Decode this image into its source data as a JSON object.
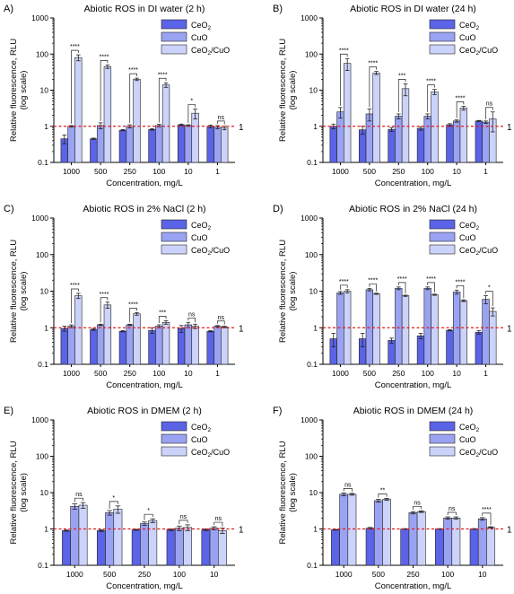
{
  "colors": {
    "CeO2": "#5b63e6",
    "CuO": "#9aa3f2",
    "CeO2/CuO": "#ccd3fa",
    "reference": "#e01b1b"
  },
  "chart_data": [
    {
      "panel": "A)",
      "type": "bar",
      "title": "Abiotic ROS in DI water (2 h)",
      "xlabel": "Concentration, mg/L",
      "ylabel": "Relative fluorescence, RLU",
      "ylabel2": "(log scale)",
      "yscale": "log",
      "ylim": [
        0.1,
        1000
      ],
      "yticks": [
        "0.1",
        "1",
        "10",
        "100",
        "1000"
      ],
      "reference_line": 1,
      "reference_label": "1",
      "legend": "top-right",
      "categories": [
        "1000",
        "500",
        "250",
        "100",
        "10",
        "1"
      ],
      "series": [
        {
          "name": "CeO",
          "sub": "2",
          "color": "#5b63e6",
          "values": [
            0.45,
            0.45,
            0.78,
            0.82,
            1.1,
            1.0
          ],
          "errors": [
            0.12,
            0.02,
            0.03,
            0.04,
            0.05,
            0.08
          ]
        },
        {
          "name": "CuO",
          "sub": "",
          "color": "#9aa3f2",
          "values": [
            1.0,
            1.05,
            1.0,
            1.05,
            1.05,
            0.95
          ],
          "errors": [
            0.05,
            0.2,
            0.1,
            0.08,
            0.05,
            0.1
          ]
        },
        {
          "name": "CeO",
          "sub": "2",
          "tail": "/CuO",
          "color": "#ccd3fa",
          "values": [
            80,
            45,
            20,
            14,
            2.3,
            0.9
          ],
          "errors": [
            15,
            5,
            1.5,
            2,
            0.7,
            0.1
          ]
        }
      ],
      "significance": [
        "****",
        "****",
        "****",
        "****",
        "*",
        "ns"
      ]
    },
    {
      "panel": "B)",
      "type": "bar",
      "title": "Abiotic ROS in DI water (24 h)",
      "xlabel": "Concentration, mg/L",
      "ylabel": "Relative fluorescence, RLU",
      "ylabel2": "(log scale)",
      "yscale": "log",
      "ylim": [
        0.1,
        1000
      ],
      "yticks": [
        "0.1",
        "1",
        "10",
        "100",
        "1000"
      ],
      "reference_line": 1,
      "reference_label": "1",
      "legend": "top-right",
      "categories": [
        "1000",
        "500",
        "250",
        "100",
        "10",
        "1"
      ],
      "series": [
        {
          "name": "CeO",
          "sub": "2",
          "color": "#5b63e6",
          "values": [
            1.0,
            0.8,
            0.82,
            0.88,
            1.1,
            1.4
          ],
          "errors": [
            0.15,
            0.2,
            0.1,
            0.1,
            0.08,
            0.05
          ]
        },
        {
          "name": "CuO",
          "sub": "",
          "color": "#9aa3f2",
          "values": [
            2.5,
            2.2,
            1.9,
            1.9,
            1.4,
            1.3
          ],
          "errors": [
            0.8,
            0.8,
            0.3,
            0.3,
            0.1,
            0.1
          ]
        },
        {
          "name": "CeO",
          "sub": "2",
          "tail": "/CuO",
          "color": "#ccd3fa",
          "values": [
            55,
            30,
            11,
            9,
            3.2,
            1.6
          ],
          "errors": [
            20,
            3,
            4,
            1.5,
            0.4,
            0.9
          ]
        }
      ],
      "significance": [
        "****",
        "****",
        "***",
        "****",
        "****",
        "ns"
      ]
    },
    {
      "panel": "C)",
      "type": "bar",
      "title": "Abiotic ROS in 2% NaCl (2 h)",
      "xlabel": "Concentration, mg/L",
      "ylabel": "Relative fluorescence, RLU",
      "ylabel2": "(log scale)",
      "yscale": "log",
      "ylim": [
        0.1,
        1000
      ],
      "yticks": [
        "0.1",
        "1",
        "10",
        "100",
        "1000"
      ],
      "reference_line": 1,
      "reference_label": "1",
      "legend": "top-right",
      "categories": [
        "1000",
        "500",
        "250",
        "100",
        "10",
        "1"
      ],
      "series": [
        {
          "name": "CeO",
          "sub": "2",
          "color": "#5b63e6",
          "values": [
            0.95,
            0.9,
            0.8,
            0.85,
            0.95,
            0.8
          ],
          "errors": [
            0.15,
            0.05,
            0.03,
            0.15,
            0.2,
            0.03
          ]
        },
        {
          "name": "CuO",
          "sub": "",
          "color": "#9aa3f2",
          "values": [
            1.1,
            1.2,
            1.2,
            1.1,
            1.2,
            1.1
          ],
          "errors": [
            0.1,
            0.05,
            0.05,
            0.1,
            0.2,
            0.05
          ]
        },
        {
          "name": "CeO",
          "sub": "2",
          "tail": "/CuO",
          "color": "#ccd3fa",
          "values": [
            7.5,
            4.2,
            2.4,
            1.4,
            1.1,
            1.05
          ],
          "errors": [
            1.2,
            0.8,
            0.2,
            0.15,
            0.15,
            0.05
          ]
        }
      ],
      "significance": [
        "****",
        "****",
        "****",
        "***",
        "ns",
        "ns"
      ]
    },
    {
      "panel": "D)",
      "type": "bar",
      "title": "Abiotic ROS in 2% NaCl (24 h)",
      "xlabel": "Concentration, mg/L",
      "ylabel": "Relative fluorescence, RLU",
      "ylabel2": "(log scale)",
      "yscale": "log",
      "ylim": [
        0.1,
        1000
      ],
      "yticks": [
        "0.1",
        "1",
        "10",
        "100",
        "1000"
      ],
      "reference_line": 1,
      "reference_label": "1",
      "legend": "top-right",
      "categories": [
        "1000",
        "500",
        "250",
        "100",
        "10",
        "1"
      ],
      "series": [
        {
          "name": "CeO",
          "sub": "2",
          "color": "#5b63e6",
          "values": [
            0.5,
            0.5,
            0.45,
            0.6,
            0.85,
            0.75
          ],
          "errors": [
            0.2,
            0.2,
            0.07,
            0.1,
            0.03,
            0.08
          ]
        },
        {
          "name": "CuO",
          "sub": "",
          "color": "#9aa3f2",
          "values": [
            9.0,
            11,
            12,
            12,
            9.5,
            6
          ],
          "errors": [
            0.8,
            0.8,
            1,
            1,
            1.2,
            1.5
          ]
        },
        {
          "name": "CeO",
          "sub": "2",
          "tail": "/CuO",
          "color": "#ccd3fa",
          "values": [
            10,
            8.5,
            7.5,
            8,
            5.5,
            2.8
          ],
          "errors": [
            1,
            0.3,
            0.3,
            0.3,
            0.3,
            0.7
          ]
        }
      ],
      "significance": [
        "****",
        "****",
        "****",
        "****",
        "****",
        "*"
      ]
    },
    {
      "panel": "E)",
      "type": "bar",
      "title": "Abiotic ROS in DMEM (2 h)",
      "xlabel": "Concentration, mg/L",
      "ylabel": "Relative fluorescence, RLU",
      "ylabel2": "(log scale)",
      "yscale": "log",
      "ylim": [
        0.1,
        1000
      ],
      "yticks": [
        "0.1",
        "1",
        "10",
        "100",
        "1000"
      ],
      "reference_line": 1,
      "reference_label": "1",
      "legend": "top-right",
      "categories": [
        "1000",
        "500",
        "250",
        "100",
        "10"
      ],
      "series": [
        {
          "name": "CeO",
          "sub": "2",
          "color": "#5b63e6",
          "values": [
            0.9,
            0.9,
            0.95,
            0.95,
            0.95
          ],
          "errors": [
            0.03,
            0.05,
            0.03,
            0.05,
            0.05
          ]
        },
        {
          "name": "CuO",
          "sub": "",
          "color": "#9aa3f2",
          "values": [
            4.2,
            2.8,
            1.4,
            1.05,
            1.05
          ],
          "errors": [
            0.7,
            0.4,
            0.15,
            0.15,
            0.1
          ]
        },
        {
          "name": "CeO",
          "sub": "2",
          "tail": "/CuO",
          "color": "#ccd3fa",
          "values": [
            4.5,
            3.5,
            1.7,
            1.1,
            0.9
          ],
          "errors": [
            0.8,
            0.8,
            0.2,
            0.2,
            0.15
          ]
        }
      ],
      "significance": [
        "ns",
        "*",
        "*",
        "ns",
        "ns"
      ]
    },
    {
      "panel": "F)",
      "type": "bar",
      "title": "Abiotic ROS in DMEM (24 h)",
      "xlabel": "Concentration, mg/L",
      "ylabel": "Relative fluorescence, RLU",
      "ylabel2": "(log scale)",
      "yscale": "log",
      "ylim": [
        0.1,
        1000
      ],
      "yticks": [
        "0.1",
        "1",
        "10",
        "100",
        "1000"
      ],
      "reference_line": 1,
      "reference_label": "1",
      "legend": "top-right",
      "categories": [
        "1000",
        "500",
        "250",
        "100",
        "10"
      ],
      "series": [
        {
          "name": "CeO",
          "sub": "2",
          "color": "#5b63e6",
          "values": [
            0.95,
            1.05,
            1.0,
            1.0,
            1.0
          ],
          "errors": [
            0.02,
            0.05,
            0.02,
            0.02,
            0.02
          ]
        },
        {
          "name": "CuO",
          "sub": "",
          "color": "#9aa3f2",
          "values": [
            9.0,
            6.0,
            2.8,
            2.0,
            1.9
          ],
          "errors": [
            0.8,
            0.5,
            0.2,
            0.15,
            0.15
          ]
        },
        {
          "name": "CeO",
          "sub": "2",
          "tail": "/CuO",
          "color": "#ccd3fa",
          "values": [
            9.0,
            6.5,
            3.0,
            2.0,
            1.1
          ],
          "errors": [
            0.5,
            0.4,
            0.15,
            0.15,
            0.05
          ]
        }
      ],
      "significance": [
        "ns",
        "**",
        "ns",
        "ns",
        "****"
      ]
    }
  ]
}
